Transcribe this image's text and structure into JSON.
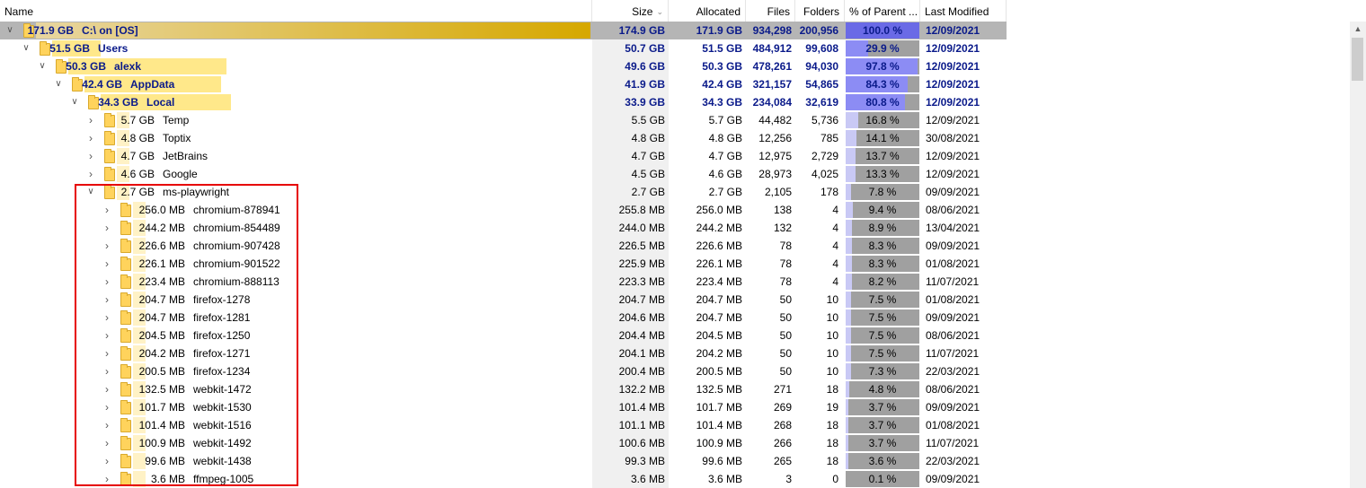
{
  "columns": {
    "name": "Name",
    "size": "Size",
    "allocated": "Allocated",
    "files": "Files",
    "folders": "Folders",
    "pct": "% of Parent ...",
    "modified": "Last Modified"
  },
  "colors": {
    "selected_row": "#b5b5b5",
    "pct_fill_selected": "#6a6ae6",
    "pct_fill_bold": "#8c8cf4",
    "pct_fill_normal": "#c9c9f5",
    "pct_background": "#a0a0a0",
    "highlight_box": "#e60000"
  },
  "rows": [
    {
      "level": 0,
      "expanded": true,
      "bold": true,
      "selected": true,
      "name_size": "171.9 GB",
      "name": "C:\\  on  [OS]",
      "size": "174.9 GB",
      "allocated": "171.9 GB",
      "files": "934,298",
      "folders": "200,956",
      "pct": "100.0 %",
      "pct_value": 100.0,
      "modified": "12/09/2021"
    },
    {
      "level": 1,
      "expanded": true,
      "bold": true,
      "name_size": "51.5 GB",
      "name": "Users",
      "size": "50.7 GB",
      "allocated": "51.5 GB",
      "files": "484,912",
      "folders": "99,608",
      "pct": "29.9 %",
      "pct_value": 29.9,
      "modified": "12/09/2021"
    },
    {
      "level": 2,
      "expanded": true,
      "bold": true,
      "name_size": "50.3 GB",
      "name": "alexk",
      "size": "49.6 GB",
      "allocated": "50.3 GB",
      "files": "478,261",
      "folders": "94,030",
      "pct": "97.8 %",
      "pct_value": 97.8,
      "modified": "12/09/2021"
    },
    {
      "level": 3,
      "expanded": true,
      "bold": true,
      "name_size": "42.4 GB",
      "name": "AppData",
      "size": "41.9 GB",
      "allocated": "42.4 GB",
      "files": "321,157",
      "folders": "54,865",
      "pct": "84.3 %",
      "pct_value": 84.3,
      "modified": "12/09/2021"
    },
    {
      "level": 4,
      "expanded": true,
      "bold": true,
      "name_size": "34.3 GB",
      "name": "Local",
      "size": "33.9 GB",
      "allocated": "34.3 GB",
      "files": "234,084",
      "folders": "32,619",
      "pct": "80.8 %",
      "pct_value": 80.8,
      "modified": "12/09/2021"
    },
    {
      "level": 5,
      "expanded": false,
      "bold": false,
      "name_size": "5.7 GB",
      "name": "Temp",
      "size": "5.5 GB",
      "allocated": "5.7 GB",
      "files": "44,482",
      "folders": "5,736",
      "pct": "16.8 %",
      "pct_value": 16.8,
      "modified": "12/09/2021"
    },
    {
      "level": 5,
      "expanded": false,
      "bold": false,
      "name_size": "4.8 GB",
      "name": "Toptix",
      "size": "4.8 GB",
      "allocated": "4.8 GB",
      "files": "12,256",
      "folders": "785",
      "pct": "14.1 %",
      "pct_value": 14.1,
      "modified": "30/08/2021"
    },
    {
      "level": 5,
      "expanded": false,
      "bold": false,
      "name_size": "4.7 GB",
      "name": "JetBrains",
      "size": "4.7 GB",
      "allocated": "4.7 GB",
      "files": "12,975",
      "folders": "2,729",
      "pct": "13.7 %",
      "pct_value": 13.7,
      "modified": "12/09/2021"
    },
    {
      "level": 5,
      "expanded": false,
      "bold": false,
      "name_size": "4.6 GB",
      "name": "Google",
      "size": "4.5 GB",
      "allocated": "4.6 GB",
      "files": "28,973",
      "folders": "4,025",
      "pct": "13.3 %",
      "pct_value": 13.3,
      "modified": "12/09/2021"
    },
    {
      "level": 5,
      "expanded": true,
      "bold": false,
      "name_size": "2.7 GB",
      "name": "ms-playwright",
      "size": "2.7 GB",
      "allocated": "2.7 GB",
      "files": "2,105",
      "folders": "178",
      "pct": "7.8 %",
      "pct_value": 7.8,
      "modified": "09/09/2021"
    },
    {
      "level": 6,
      "expanded": false,
      "bold": false,
      "name_size": "256.0 MB",
      "name": "chromium-878941",
      "size": "255.8 MB",
      "allocated": "256.0 MB",
      "files": "138",
      "folders": "4",
      "pct": "9.4 %",
      "pct_value": 9.4,
      "modified": "08/06/2021"
    },
    {
      "level": 6,
      "expanded": false,
      "bold": false,
      "name_size": "244.2 MB",
      "name": "chromium-854489",
      "size": "244.0 MB",
      "allocated": "244.2 MB",
      "files": "132",
      "folders": "4",
      "pct": "8.9 %",
      "pct_value": 8.9,
      "modified": "13/04/2021"
    },
    {
      "level": 6,
      "expanded": false,
      "bold": false,
      "name_size": "226.6 MB",
      "name": "chromium-907428",
      "size": "226.5 MB",
      "allocated": "226.6 MB",
      "files": "78",
      "folders": "4",
      "pct": "8.3 %",
      "pct_value": 8.3,
      "modified": "09/09/2021"
    },
    {
      "level": 6,
      "expanded": false,
      "bold": false,
      "name_size": "226.1 MB",
      "name": "chromium-901522",
      "size": "225.9 MB",
      "allocated": "226.1 MB",
      "files": "78",
      "folders": "4",
      "pct": "8.3 %",
      "pct_value": 8.3,
      "modified": "01/08/2021"
    },
    {
      "level": 6,
      "expanded": false,
      "bold": false,
      "name_size": "223.4 MB",
      "name": "chromium-888113",
      "size": "223.3 MB",
      "allocated": "223.4 MB",
      "files": "78",
      "folders": "4",
      "pct": "8.2 %",
      "pct_value": 8.2,
      "modified": "11/07/2021"
    },
    {
      "level": 6,
      "expanded": false,
      "bold": false,
      "name_size": "204.7 MB",
      "name": "firefox-1278",
      "size": "204.7 MB",
      "allocated": "204.7 MB",
      "files": "50",
      "folders": "10",
      "pct": "7.5 %",
      "pct_value": 7.5,
      "modified": "01/08/2021"
    },
    {
      "level": 6,
      "expanded": false,
      "bold": false,
      "name_size": "204.7 MB",
      "name": "firefox-1281",
      "size": "204.6 MB",
      "allocated": "204.7 MB",
      "files": "50",
      "folders": "10",
      "pct": "7.5 %",
      "pct_value": 7.5,
      "modified": "09/09/2021"
    },
    {
      "level": 6,
      "expanded": false,
      "bold": false,
      "name_size": "204.5 MB",
      "name": "firefox-1250",
      "size": "204.4 MB",
      "allocated": "204.5 MB",
      "files": "50",
      "folders": "10",
      "pct": "7.5 %",
      "pct_value": 7.5,
      "modified": "08/06/2021"
    },
    {
      "level": 6,
      "expanded": false,
      "bold": false,
      "name_size": "204.2 MB",
      "name": "firefox-1271",
      "size": "204.1 MB",
      "allocated": "204.2 MB",
      "files": "50",
      "folders": "10",
      "pct": "7.5 %",
      "pct_value": 7.5,
      "modified": "11/07/2021"
    },
    {
      "level": 6,
      "expanded": false,
      "bold": false,
      "name_size": "200.5 MB",
      "name": "firefox-1234",
      "size": "200.4 MB",
      "allocated": "200.5 MB",
      "files": "50",
      "folders": "10",
      "pct": "7.3 %",
      "pct_value": 7.3,
      "modified": "22/03/2021"
    },
    {
      "level": 6,
      "expanded": false,
      "bold": false,
      "name_size": "132.5 MB",
      "name": "webkit-1472",
      "size": "132.2 MB",
      "allocated": "132.5 MB",
      "files": "271",
      "folders": "18",
      "pct": "4.8 %",
      "pct_value": 4.8,
      "modified": "08/06/2021"
    },
    {
      "level": 6,
      "expanded": false,
      "bold": false,
      "name_size": "101.7 MB",
      "name": "webkit-1530",
      "size": "101.4 MB",
      "allocated": "101.7 MB",
      "files": "269",
      "folders": "19",
      "pct": "3.7 %",
      "pct_value": 3.7,
      "modified": "09/09/2021"
    },
    {
      "level": 6,
      "expanded": false,
      "bold": false,
      "name_size": "101.4 MB",
      "name": "webkit-1516",
      "size": "101.1 MB",
      "allocated": "101.4 MB",
      "files": "268",
      "folders": "18",
      "pct": "3.7 %",
      "pct_value": 3.7,
      "modified": "01/08/2021"
    },
    {
      "level": 6,
      "expanded": false,
      "bold": false,
      "name_size": "100.9 MB",
      "name": "webkit-1492",
      "size": "100.6 MB",
      "allocated": "100.9 MB",
      "files": "266",
      "folders": "18",
      "pct": "3.7 %",
      "pct_value": 3.7,
      "modified": "11/07/2021"
    },
    {
      "level": 6,
      "expanded": false,
      "bold": false,
      "name_size": "99.6 MB",
      "name": "webkit-1438",
      "size": "99.3 MB",
      "allocated": "99.6 MB",
      "files": "265",
      "folders": "18",
      "pct": "3.6 %",
      "pct_value": 3.6,
      "modified": "22/03/2021"
    },
    {
      "level": 6,
      "expanded": false,
      "bold": false,
      "name_size": "3.6 MB",
      "name": "ffmpeg-1005",
      "size": "3.6 MB",
      "allocated": "3.6 MB",
      "files": "3",
      "folders": "0",
      "pct": "0.1 %",
      "pct_value": 0.1,
      "modified": "09/09/2021"
    }
  ]
}
